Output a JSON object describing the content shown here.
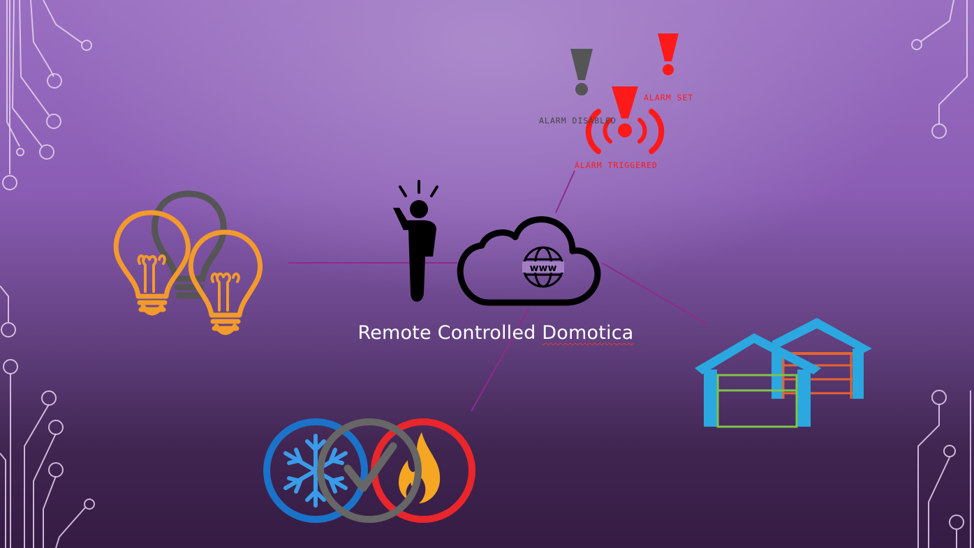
{
  "title": {
    "prefix": "Remote Controlled ",
    "highlighted": "Domotica"
  },
  "alarms": {
    "disabled_label": "ALARM DISABLED",
    "set_label": "ALARM SET",
    "triggered_label": "ALARM TRIGGERED"
  },
  "colors": {
    "bulb": "#f39a2c",
    "bulb_off": "#555555",
    "alarm": "#ff1a1a",
    "garage_blue": "#2aa8df",
    "cold": "#1a73c8",
    "heat": "#e8262b",
    "check": "#666666",
    "connector": "#8e2a8e"
  },
  "icons": {
    "cloud": "cloud-www-icon",
    "person": "person-idea-icon",
    "bulbs": "light-bulb-icon",
    "garage": "garage-icon",
    "climate": "climate-icon"
  }
}
